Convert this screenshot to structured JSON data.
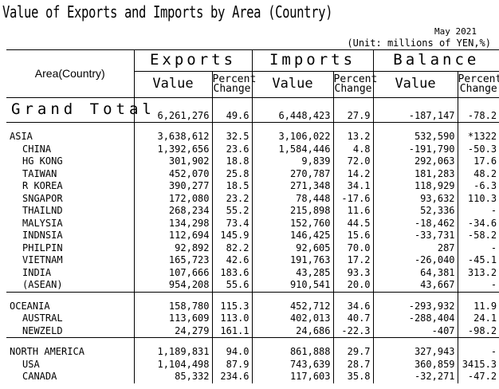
{
  "title": "Value of Exports and Imports by Area (Country)",
  "period": "May 2021",
  "unit": "(Unit: millions of YEN,%)",
  "headers": {
    "area": "Area(Country)",
    "exports": "Exports",
    "imports": "Imports",
    "balance": "Balance",
    "value": "Value",
    "percent": "Percent",
    "change": "Change"
  },
  "grand_total": {
    "label": "Grand Total",
    "exp": "6,261,276",
    "exp_pc": "49.6",
    "imp": "6,448,423",
    "imp_pc": "27.9",
    "bal": "-187,147",
    "bal_pc": "-78.2"
  },
  "rows": [
    {
      "label": "ASIA",
      "exp": "3,638,612",
      "exp_pc": "32.5",
      "imp": "3,106,022",
      "imp_pc": "13.2",
      "bal": "532,590",
      "bal_pc": "*1322"
    },
    {
      "label": "CHINA",
      "exp": "1,392,656",
      "exp_pc": "23.6",
      "imp": "1,584,446",
      "imp_pc": "4.8",
      "bal": "-191,790",
      "bal_pc": "-50.3"
    },
    {
      "label": "HG KONG",
      "exp": "301,902",
      "exp_pc": "18.8",
      "imp": "9,839",
      "imp_pc": "72.0",
      "bal": "292,063",
      "bal_pc": "17.6"
    },
    {
      "label": "TAIWAN",
      "exp": "452,070",
      "exp_pc": "25.8",
      "imp": "270,787",
      "imp_pc": "14.2",
      "bal": "181,283",
      "bal_pc": "48.2"
    },
    {
      "label": "R KOREA",
      "exp": "390,277",
      "exp_pc": "18.5",
      "imp": "271,348",
      "imp_pc": "34.1",
      "bal": "118,929",
      "bal_pc": "-6.3"
    },
    {
      "label": "SNGAPOR",
      "exp": "172,080",
      "exp_pc": "23.2",
      "imp": "78,448",
      "imp_pc": "-17.6",
      "bal": "93,632",
      "bal_pc": "110.3"
    },
    {
      "label": "THAILND",
      "exp": "268,234",
      "exp_pc": "55.2",
      "imp": "215,898",
      "imp_pc": "11.6",
      "bal": "52,336",
      "bal_pc": "-"
    },
    {
      "label": "MALYSIA",
      "exp": "134,298",
      "exp_pc": "73.4",
      "imp": "152,760",
      "imp_pc": "44.5",
      "bal": "-18,462",
      "bal_pc": "-34.6"
    },
    {
      "label": "INDNSIA",
      "exp": "112,694",
      "exp_pc": "145.9",
      "imp": "146,425",
      "imp_pc": "15.6",
      "bal": "-33,731",
      "bal_pc": "-58.2"
    },
    {
      "label": "PHILPIN",
      "exp": "92,892",
      "exp_pc": "82.2",
      "imp": "92,605",
      "imp_pc": "70.0",
      "bal": "287",
      "bal_pc": "-"
    },
    {
      "label": "VIETNAM",
      "exp": "165,723",
      "exp_pc": "42.6",
      "imp": "191,763",
      "imp_pc": "17.2",
      "bal": "-26,040",
      "bal_pc": "-45.1"
    },
    {
      "label": "INDIA",
      "exp": "107,666",
      "exp_pc": "183.6",
      "imp": "43,285",
      "imp_pc": "93.3",
      "bal": "64,381",
      "bal_pc": "313.2"
    },
    {
      "label": "(ASEAN)",
      "exp": "954,208",
      "exp_pc": "55.6",
      "imp": "910,541",
      "imp_pc": "20.0",
      "bal": "43,667",
      "bal_pc": "-"
    },
    {
      "label": "OCEANIA",
      "exp": "158,780",
      "exp_pc": "115.3",
      "imp": "452,712",
      "imp_pc": "34.6",
      "bal": "-293,932",
      "bal_pc": "11.9"
    },
    {
      "label": "AUSTRAL",
      "exp": "113,609",
      "exp_pc": "113.0",
      "imp": "402,013",
      "imp_pc": "40.7",
      "bal": "-288,404",
      "bal_pc": "24.1"
    },
    {
      "label": "NEWZELD",
      "exp": "24,279",
      "exp_pc": "161.1",
      "imp": "24,686",
      "imp_pc": "-22.3",
      "bal": "-407",
      "bal_pc": "-98.2"
    },
    {
      "label": "NORTH AMERICA",
      "exp": "1,189,831",
      "exp_pc": "94.0",
      "imp": "861,888",
      "imp_pc": "29.7",
      "bal": "327,943",
      "bal_pc": "-"
    },
    {
      "label": "USA",
      "exp": "1,104,498",
      "exp_pc": "87.9",
      "imp": "743,639",
      "imp_pc": "28.7",
      "bal": "360,859",
      "bal_pc": "3415.3"
    },
    {
      "label": "CANADA",
      "exp": "85,332",
      "exp_pc": "234.6",
      "imp": "117,603",
      "imp_pc": "35.8",
      "bal": "-32,271",
      "bal_pc": "-47.2"
    }
  ]
}
